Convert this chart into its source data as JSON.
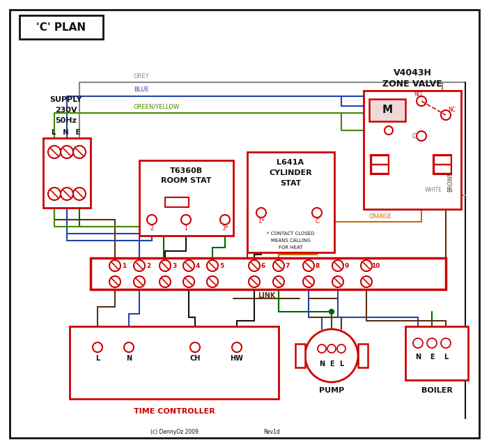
{
  "title": "'C' PLAN",
  "bg_color": "#ffffff",
  "red": "#cc0000",
  "blue": "#2244aa",
  "green": "#006600",
  "grey": "#888888",
  "brown": "#5a3010",
  "orange": "#cc6600",
  "black": "#111111",
  "green_yellow": "#448800",
  "supply_text": [
    "SUPPLY",
    "230V",
    "50Hz"
  ],
  "zone_valve_title": [
    "V4043H",
    "ZONE VALVE"
  ],
  "room_stat_title": [
    "T6360B",
    "ROOM STAT"
  ],
  "cylinder_stat_title": [
    "L641A",
    "CYLINDER",
    "STAT"
  ],
  "time_ctrl_label": "TIME CONTROLLER",
  "pump_label": "PUMP",
  "boiler_label": "BOILER",
  "terminal_numbers": [
    "1",
    "2",
    "3",
    "4",
    "5",
    "6",
    "7",
    "8",
    "9",
    "10"
  ],
  "link_label": "LINK",
  "rev": "Rev1d",
  "copyright": "(c) DennyOz 2009",
  "footnote": [
    "* CONTACT CLOSED",
    "MEANS CALLING",
    "FOR HEAT"
  ]
}
